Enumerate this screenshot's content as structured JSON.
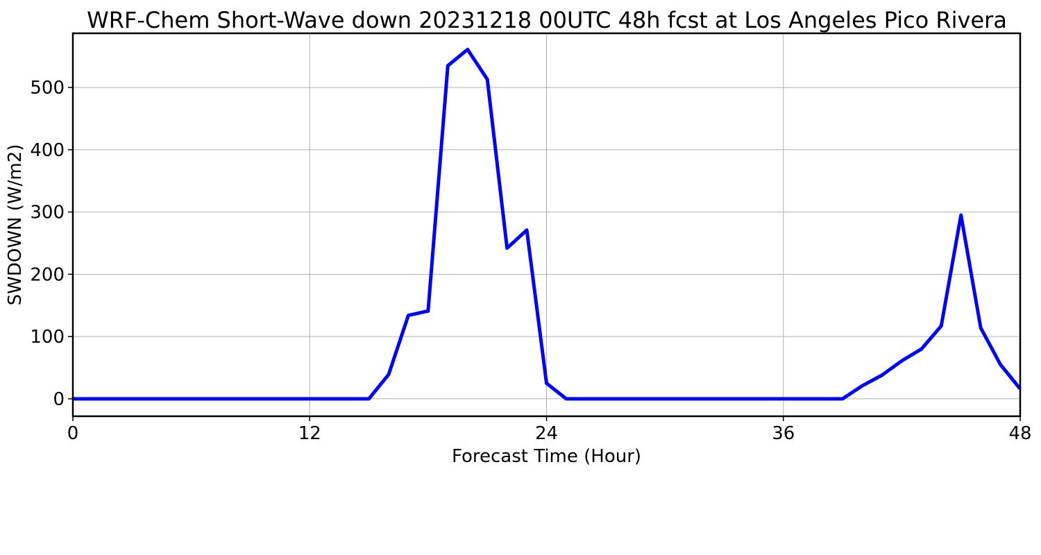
{
  "chart_data": {
    "type": "line",
    "title": "WRF-Chem Short-Wave down  20231218 00UTC 48h fcst at Los Angeles Pico Rivera",
    "xlabel": "Forecast Time (Hour)",
    "ylabel": "SWDOWN  (W/m2)",
    "xlim": [
      0,
      48
    ],
    "ylim": [
      -28,
      587
    ],
    "xticks": [
      0,
      12,
      24,
      36,
      48
    ],
    "yticks": [
      0,
      100,
      200,
      300,
      400,
      500
    ],
    "grid": true,
    "series": [
      {
        "color": "#0000ff",
        "x": [
          0,
          1,
          2,
          3,
          4,
          5,
          6,
          7,
          8,
          9,
          10,
          11,
          12,
          13,
          14,
          15,
          16,
          17,
          18,
          19,
          20,
          21,
          22,
          23,
          24,
          25,
          26,
          27,
          28,
          29,
          30,
          31,
          32,
          33,
          34,
          35,
          36,
          37,
          38,
          39,
          40,
          41,
          42,
          43,
          44,
          45,
          46,
          47,
          48
        ],
        "values": [
          0,
          0,
          0,
          0,
          0,
          0,
          0,
          0,
          0,
          0,
          0,
          0,
          0,
          0,
          0,
          0,
          39,
          134,
          141,
          535,
          561,
          513,
          242,
          271,
          25,
          0,
          0,
          0,
          0,
          0,
          0,
          0,
          0,
          0,
          0,
          0,
          0,
          0,
          0,
          0,
          21,
          38,
          61,
          80,
          117,
          295,
          114,
          55,
          16
        ]
      }
    ]
  }
}
